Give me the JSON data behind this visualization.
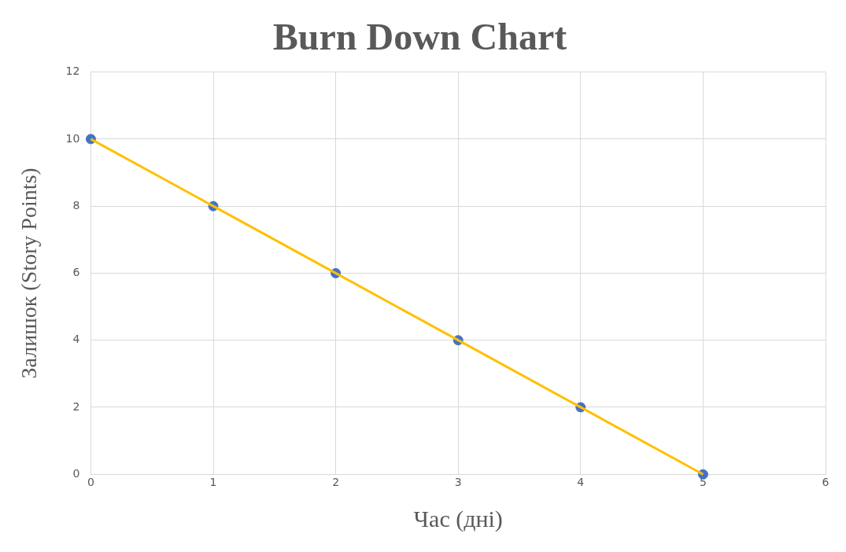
{
  "chart_data": {
    "type": "scatter",
    "title": "Burn Down Chart",
    "xlabel": "Час (дні)",
    "ylabel": "Залишок (Story Points)",
    "x": [
      0,
      1,
      2,
      3,
      4,
      5
    ],
    "series": [
      {
        "color": "#4472c4",
        "marker": "circle",
        "values": [
          10,
          8,
          6,
          4,
          2,
          0
        ]
      },
      {
        "type": "line",
        "color": "#ffc000",
        "marker": "none",
        "line_style": "solid",
        "values": [
          10,
          8,
          6,
          4,
          2,
          0
        ]
      }
    ],
    "xlim": [
      0,
      6
    ],
    "xticks": [
      0,
      1,
      2,
      3,
      4,
      5,
      6
    ],
    "ylim": [
      0,
      12
    ],
    "yticks": [
      0,
      2,
      4,
      6,
      8,
      10,
      12
    ],
    "grid": true,
    "legend": false
  }
}
